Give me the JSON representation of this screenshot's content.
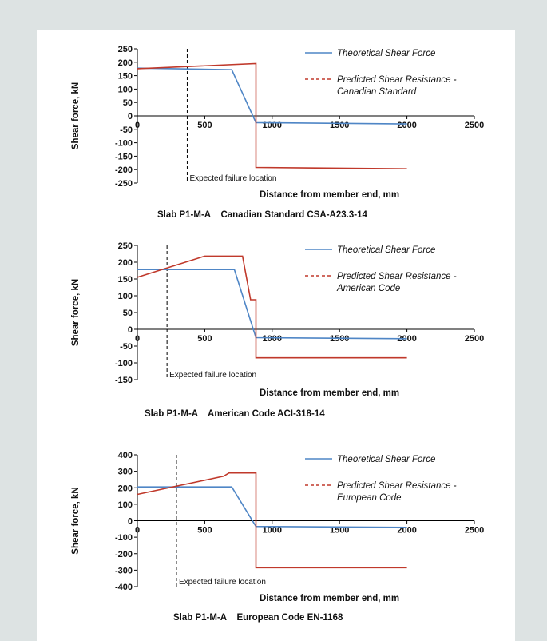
{
  "colors": {
    "theoretical": "#4f86c6",
    "resistance": "#c0392b",
    "background": "#dde3e3",
    "panel": "#ffffff"
  },
  "chart_data": [
    {
      "type": "line",
      "caption": "Slab P1-M-A    Canadian Standard CSA-A23.3-14",
      "xlabel": "Distance from member end, mm",
      "ylabel": "Shear force, kN",
      "xlim": [
        0,
        2500
      ],
      "ylim": [
        -250,
        250
      ],
      "x_ticks": [
        0,
        500,
        1000,
        1500,
        2000,
        2500
      ],
      "y_ticks": [
        250,
        200,
        150,
        100,
        50,
        0,
        -50,
        -100,
        -150,
        -200,
        -250
      ],
      "legend": {
        "position": "top-right",
        "items": [
          "Theoretical Shear Force",
          "Predicted Shear Resistance -",
          "Canadian Standard"
        ]
      },
      "annotation": {
        "text": "Expected failure location",
        "x": 370
      },
      "series": [
        {
          "name": "Theoretical Shear Force",
          "style": "solid",
          "x": [
            0,
            700,
            880,
            2000
          ],
          "y": [
            178,
            172,
            -25,
            -30
          ]
        },
        {
          "name": "Predicted Shear Resistance - Canadian Standard",
          "style": "solid",
          "x": [
            0,
            880,
            880,
            880,
            2000
          ],
          "y": [
            176,
            195,
            195,
            -192,
            -197
          ]
        }
      ]
    },
    {
      "type": "line",
      "caption": "Slab P1-M-A    American Code ACI-318-14",
      "xlabel": "Distance from member end, mm",
      "ylabel": "Shear force, kN",
      "xlim": [
        0,
        2500
      ],
      "ylim": [
        -150,
        250
      ],
      "x_ticks": [
        0,
        500,
        1000,
        1500,
        2000,
        2500
      ],
      "y_ticks": [
        250,
        200,
        150,
        100,
        50,
        0,
        -50,
        -100,
        -150
      ],
      "legend": {
        "position": "top-right",
        "items": [
          "Theoretical Shear Force",
          "Predicted Shear Resistance -",
          "American Code"
        ]
      },
      "annotation": {
        "text": "Expected failure location",
        "x": 220
      },
      "series": [
        {
          "name": "Theoretical Shear Force",
          "style": "solid",
          "x": [
            0,
            720,
            880,
            2000
          ],
          "y": [
            178,
            178,
            -25,
            -28
          ]
        },
        {
          "name": "Predicted Shear Resistance - American Code",
          "style": "solid",
          "x": [
            0,
            500,
            780,
            840,
            880,
            880,
            2000
          ],
          "y": [
            155,
            218,
            218,
            88,
            88,
            -85,
            -85
          ]
        }
      ]
    },
    {
      "type": "line",
      "caption": "Slab P1-M-A    European Code EN-1168",
      "xlabel": "Distance from member end, mm",
      "ylabel": "Shear force, kN",
      "xlim": [
        0,
        2500
      ],
      "ylim": [
        -400,
        400
      ],
      "x_ticks": [
        0,
        500,
        1000,
        1500,
        2000,
        2500
      ],
      "y_ticks": [
        400,
        300,
        200,
        100,
        0,
        -100,
        -200,
        -300,
        -400
      ],
      "legend": {
        "position": "top-right",
        "items": [
          "Theoretical Shear Force",
          "Predicted Shear Resistance -",
          "European Code"
        ]
      },
      "annotation": {
        "text": "Expected failure location",
        "x": 290
      },
      "series": [
        {
          "name": "Theoretical Shear Force",
          "style": "solid",
          "x": [
            0,
            700,
            880,
            2000
          ],
          "y": [
            205,
            205,
            -35,
            -40
          ]
        },
        {
          "name": "Predicted Shear Resistance - European Code",
          "style": "solid",
          "x": [
            0,
            640,
            680,
            880,
            880,
            2000
          ],
          "y": [
            160,
            270,
            290,
            290,
            -285,
            -285
          ]
        }
      ]
    }
  ]
}
